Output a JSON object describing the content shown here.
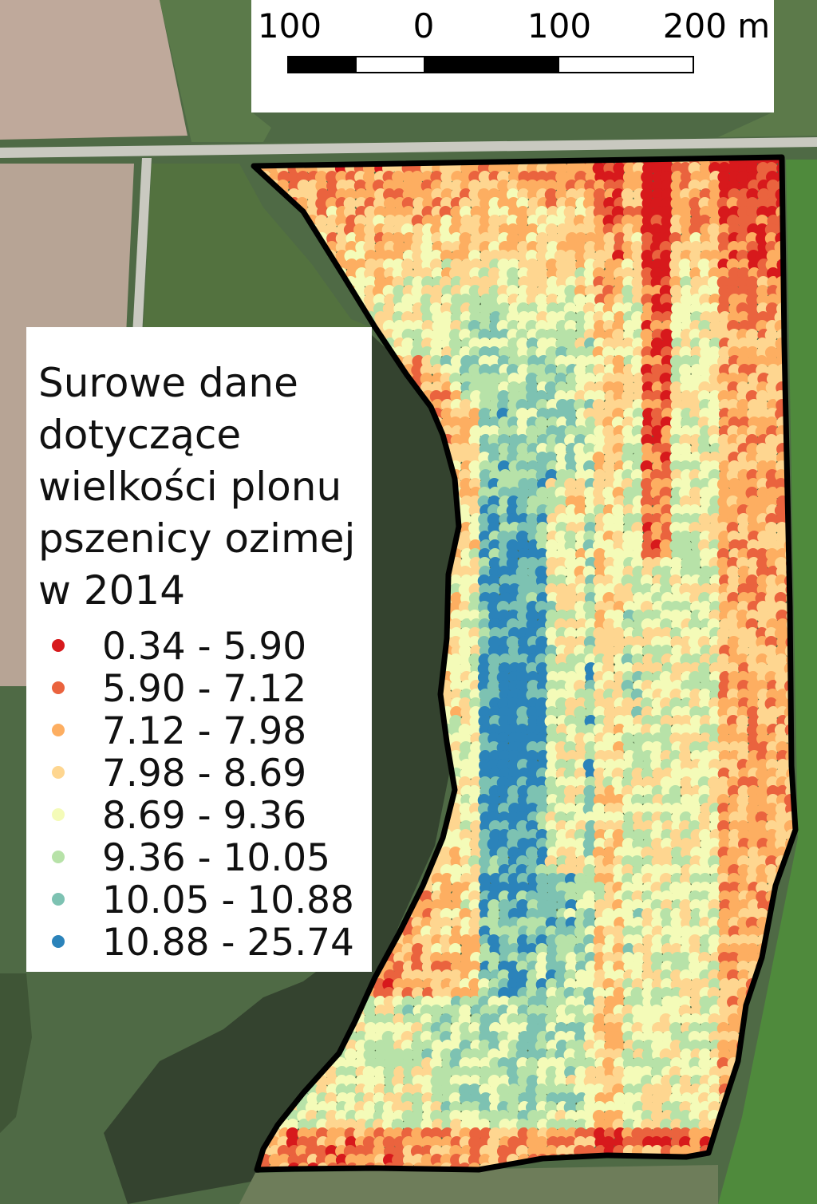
{
  "scale_bar": {
    "labels": [
      "100",
      "0",
      "100",
      "200 m"
    ],
    "segment_colors": [
      "#000000",
      "#ffffff",
      "#000000",
      "#000000",
      "#ffffff"
    ]
  },
  "legend": {
    "title": "Surowe dane dotyczące wielkości plonu pszenicy ozimej w 2014",
    "classes": [
      {
        "label": "0.34 - 5.90",
        "color": "#d7191c"
      },
      {
        "label": "5.90 - 7.12",
        "color": "#ea633e"
      },
      {
        "label": "7.12 - 7.98",
        "color": "#fdae61"
      },
      {
        "label": "7.98 - 8.69",
        "color": "#fed690"
      },
      {
        "label": "8.69 - 9.36",
        "color": "#f4fbb8"
      },
      {
        "label": "9.36 - 10.05",
        "color": "#b7e2a8"
      },
      {
        "label": "10.05 - 10.88",
        "color": "#7dc2b2"
      },
      {
        "label": "10.88 - 25.74",
        "color": "#2b83ba"
      }
    ]
  },
  "map": {
    "background_colors": {
      "grass": "#4f6a45",
      "field_light": "#b8a79a",
      "field_green": "#52703f",
      "water": "#2f3f33",
      "road": "#c8c8c0"
    },
    "field_outline_color": "#000000"
  }
}
